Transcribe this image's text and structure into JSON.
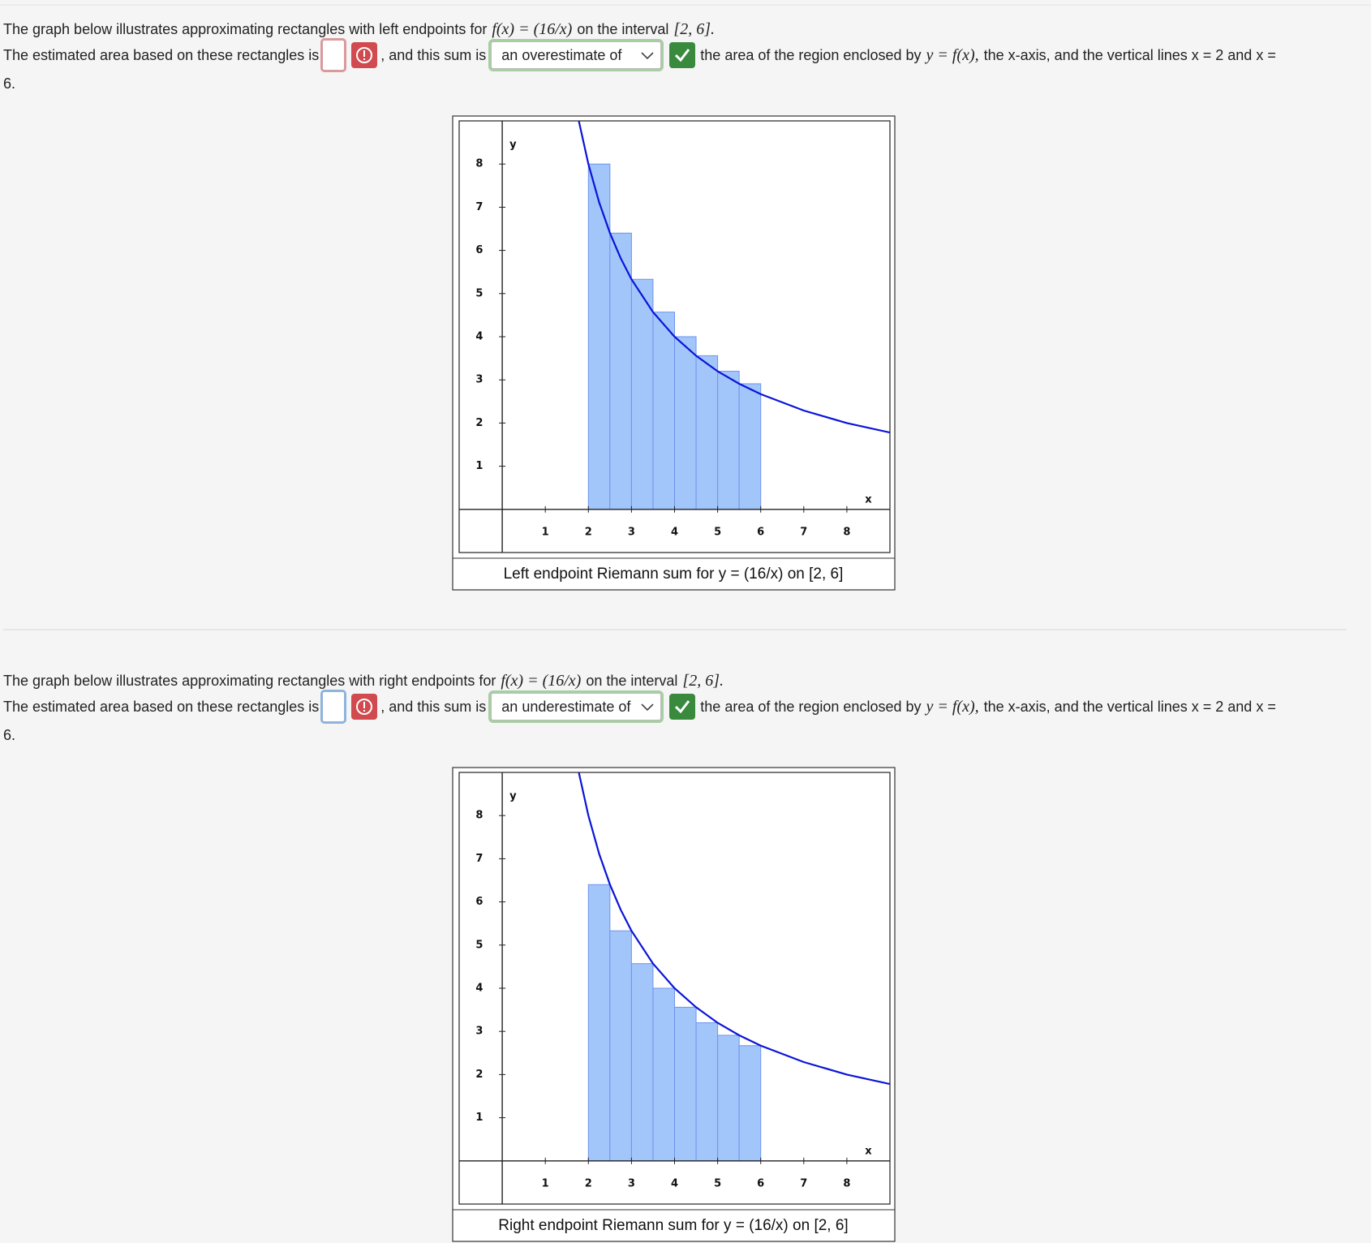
{
  "problems": [
    {
      "intro": "The graph below illustrates approximating rectangles with left endpoints for",
      "function": "f(x) = (16/x)",
      "interval_text": "on the interval",
      "interval": "[2, 6].",
      "estimate_text": "The estimated area based on these rectangles is",
      "sum_text": ", and this sum is",
      "select": "an overestimate of",
      "region_text": "the area of the region enclosed by",
      "region_math": "y = f(x),",
      "region_rest": "the x-axis, and the vertical lines x = 2 and x =",
      "end": "6."
    },
    {
      "intro": "The graph below illustrates approximating rectangles with right endpoints for",
      "function": "f(x) = (16/x)",
      "interval_text": "on the interval",
      "interval": "[2, 6].",
      "estimate_text": "The estimated area based on these rectangles is",
      "sum_text": ", and this sum is",
      "select": "an underestimate of",
      "region_text": "the area of the region enclosed by",
      "region_math": "y = f(x),",
      "region_rest": "the x-axis, and the vertical lines x = 2 and x =",
      "end": "6."
    }
  ],
  "chart_data": [
    {
      "type": "histogram",
      "caption": "Left endpoint Riemann sum for y = (16/x) on [2, 6]",
      "xlabel": "x",
      "ylabel": "y",
      "bins": [
        2,
        2.5,
        3,
        3.5,
        4,
        4.5,
        5,
        5.5,
        6
      ],
      "values": [
        8,
        6.4,
        5.33,
        4.57,
        4,
        3.56,
        3.2,
        2.91
      ],
      "color": "#a3c6fa",
      "edge_color": "#6d93ee",
      "curve": {
        "color": "#0a14d8",
        "x": [
          1.78,
          2,
          2.25,
          2.5,
          2.75,
          3,
          3.5,
          4,
          4.5,
          5,
          5.5,
          6,
          7,
          8,
          9
        ],
        "y": [
          8.99,
          8,
          7.11,
          6.4,
          5.82,
          5.33,
          4.57,
          4,
          3.56,
          3.2,
          2.91,
          2.67,
          2.29,
          2,
          1.78
        ]
      },
      "xlim": [
        -1,
        9
      ],
      "ylim": [
        -1,
        9
      ],
      "xticks": [
        1,
        2,
        3,
        4,
        5,
        6,
        7,
        8
      ],
      "yticks": [
        1,
        2,
        3,
        4,
        5,
        6,
        7,
        8
      ]
    },
    {
      "type": "histogram",
      "caption": "Right endpoint Riemann sum for y = (16/x) on [2, 6]",
      "xlabel": "x",
      "ylabel": "y",
      "bins": [
        2,
        2.5,
        3,
        3.5,
        4,
        4.5,
        5,
        5.5,
        6
      ],
      "values": [
        6.4,
        5.33,
        4.57,
        4,
        3.56,
        3.2,
        2.91,
        2.67
      ],
      "color": "#a3c6fa",
      "edge_color": "#6d93ee",
      "curve": {
        "color": "#0a14d8",
        "x": [
          1.78,
          2,
          2.25,
          2.5,
          2.75,
          3,
          3.5,
          4,
          4.5,
          5,
          5.5,
          6,
          7,
          8,
          9
        ],
        "y": [
          8.99,
          8,
          7.11,
          6.4,
          5.82,
          5.33,
          4.57,
          4,
          3.56,
          3.2,
          2.91,
          2.67,
          2.29,
          2,
          1.78
        ]
      },
      "xlim": [
        -1,
        9
      ],
      "ylim": [
        -1,
        9
      ],
      "xticks": [
        1,
        2,
        3,
        4,
        5,
        6,
        7,
        8
      ],
      "yticks": [
        1,
        2,
        3,
        4,
        5,
        6,
        7,
        8
      ]
    }
  ]
}
